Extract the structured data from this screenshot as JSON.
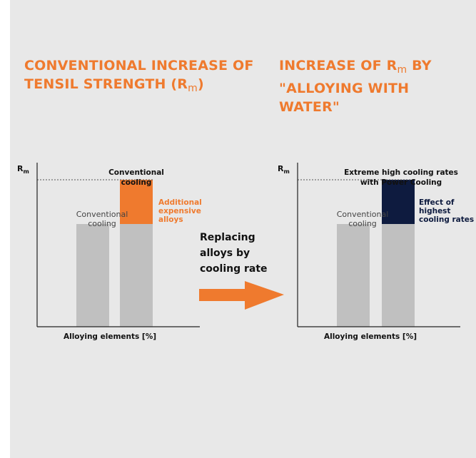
{
  "headings": {
    "left": {
      "main": "CONVENTIONAL INCREASE OF TENSIL STRENGTH (R",
      "sub": "m",
      "tail": ")"
    },
    "right": {
      "pre": "INCREASE OF R",
      "sub": "m",
      "post": " BY \"ALLOYING WITH WATER\""
    }
  },
  "middle": {
    "label_lines": [
      "Replacing",
      "alloys by",
      "cooling rate"
    ],
    "arrow_color": "#ef7a2e"
  },
  "colors": {
    "heading": "#ef7a2e",
    "bar_base": "#c0c0c0",
    "alloy_segment": "#ef7a2e",
    "cooling_segment": "#0e1b3f",
    "axis": "#222222"
  },
  "chart_data": [
    {
      "type": "bar",
      "stacked": true,
      "categories": [
        "Conventional cooling",
        "Conventional cooling"
      ],
      "series": [
        {
          "name": "",
          "values": [
            72,
            72
          ],
          "color": "#c0c0c0"
        },
        {
          "name": "Additional expensive alloys",
          "values": [
            0,
            31
          ],
          "color": "#ef7a2e"
        }
      ],
      "ylim": [
        0,
        115
      ],
      "reference_line": 103,
      "ylabel": "R",
      "ylabel_sub": "m",
      "xlabel": "Alloying elements [%]",
      "bar_labels": [
        [
          "Conventional",
          "cooling"
        ],
        [
          "Conventional",
          "cooling"
        ]
      ],
      "annotation_lines": [
        "Additional",
        "expensive",
        "alloys"
      ],
      "grid": false
    },
    {
      "type": "bar",
      "stacked": true,
      "categories": [
        "Conventional cooling",
        "Extreme high cooling rates with Power Cooling"
      ],
      "series": [
        {
          "name": "",
          "values": [
            72,
            72
          ],
          "color": "#c0c0c0"
        },
        {
          "name": "Effect of highest cooling rates",
          "values": [
            0,
            31
          ],
          "color": "#0e1b3f"
        }
      ],
      "ylim": [
        0,
        115
      ],
      "reference_line": 103,
      "ylabel": "R",
      "ylabel_sub": "m",
      "xlabel": "Alloying elements [%]",
      "bar_labels": [
        [
          "Conventional",
          "cooling"
        ],
        [
          "Extreme high cooling rates",
          "with Power Cooling"
        ]
      ],
      "annotation_lines": [
        "Effect of",
        "highest",
        "cooling rates"
      ],
      "grid": false
    }
  ]
}
